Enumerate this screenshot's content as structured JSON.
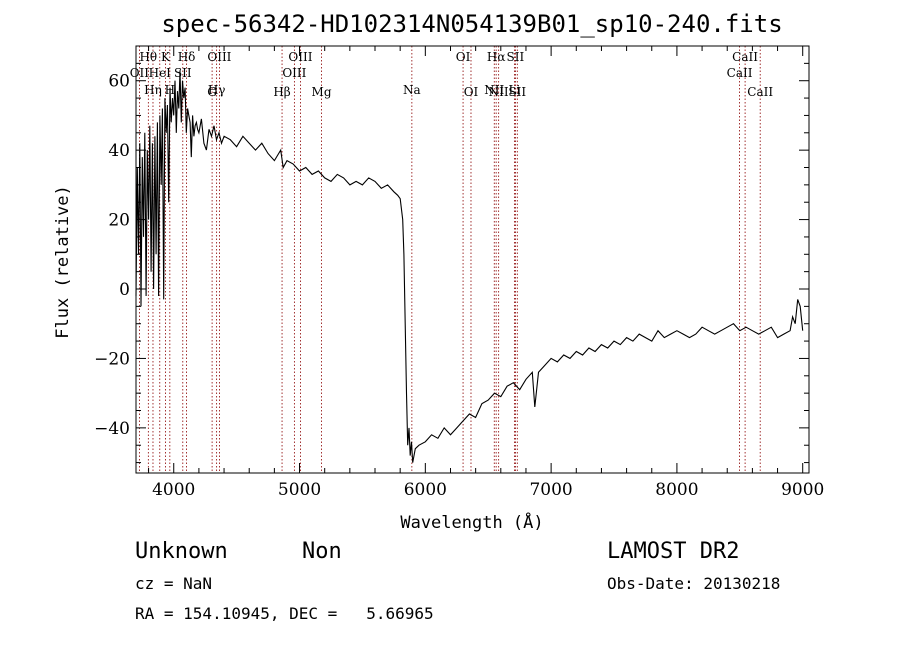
{
  "footer": {
    "class_label": "Unknown",
    "subclass_label": "Non",
    "survey": "LAMOST DR2",
    "cz": "cz = NaN",
    "obs_date": "Obs-Date: 20130218",
    "coords": "RA = 154.10945, DEC =   5.66965"
  },
  "chart_data": {
    "type": "line",
    "title": "spec-56342-HD102314N054139B01_sp10-240.fits",
    "xlabel": "Wavelength (Å)",
    "ylabel": "Flux (relative)",
    "xlim": [
      3700,
      9050
    ],
    "ylim": [
      -53,
      70
    ],
    "x_ticks": [
      4000,
      5000,
      6000,
      7000,
      8000,
      9000
    ],
    "y_ticks": [
      -40,
      -20,
      0,
      20,
      40,
      60
    ],
    "line_color": "#000000",
    "marker_color": "#8b0000",
    "spectral_lines": [
      {
        "label": "OII",
        "wavelength": 3727,
        "row": 2
      },
      {
        "label": "Hθ",
        "wavelength": 3798,
        "row": 1
      },
      {
        "label": "Hη",
        "wavelength": 3835,
        "row": 3
      },
      {
        "label": "HeI",
        "wavelength": 3889,
        "row": 2
      },
      {
        "label": "K",
        "wavelength": 3934,
        "row": 1
      },
      {
        "label": "H",
        "wavelength": 3969,
        "row": 3
      },
      {
        "label": "SII",
        "wavelength": 4072,
        "row": 2
      },
      {
        "label": "Hδ",
        "wavelength": 4102,
        "row": 1
      },
      {
        "label": "G",
        "wavelength": 4305,
        "row": 4
      },
      {
        "label": "Hγ",
        "wavelength": 4341,
        "row": 3
      },
      {
        "label": "OIII",
        "wavelength": 4363,
        "row": 1
      },
      {
        "label": "Hβ",
        "wavelength": 4861,
        "row": 4
      },
      {
        "label": "OIII",
        "wavelength": 4959,
        "row": 2
      },
      {
        "label": "OIII",
        "wavelength": 5007,
        "row": 1
      },
      {
        "label": "Mg",
        "wavelength": 5175,
        "row": 4
      },
      {
        "label": "Na",
        "wavelength": 5893,
        "row": 3
      },
      {
        "label": "OI",
        "wavelength": 6300,
        "row": 1
      },
      {
        "label": "OI",
        "wavelength": 6363,
        "row": 4
      },
      {
        "label": "NII",
        "wavelength": 6548,
        "row": 3
      },
      {
        "label": "Hα",
        "wavelength": 6563,
        "row": 1
      },
      {
        "label": "NII",
        "wavelength": 6583,
        "row": 4
      },
      {
        "label": "Li",
        "wavelength": 6708,
        "row": 3
      },
      {
        "label": "SII",
        "wavelength": 6716,
        "row": 1
      },
      {
        "label": "SII",
        "wavelength": 6731,
        "row": 4
      },
      {
        "label": "CaII",
        "wavelength": 8498,
        "row": 2
      },
      {
        "label": "CaII",
        "wavelength": 8542,
        "row": 1
      },
      {
        "label": "CaII",
        "wavelength": 8662,
        "row": 4
      }
    ],
    "series": [
      {
        "x": [
          3700,
          3710,
          3720,
          3730,
          3740,
          3750,
          3760,
          3770,
          3780,
          3790,
          3800,
          3810,
          3820,
          3830,
          3840,
          3850,
          3860,
          3870,
          3880,
          3890,
          3900,
          3910,
          3920,
          3930,
          3940,
          3950,
          3960,
          3970,
          3980,
          3990,
          4000,
          4010,
          4020,
          4030,
          4040,
          4050,
          4060,
          4070,
          4080,
          4090,
          4100,
          4110,
          4120,
          4130,
          4140,
          4150,
          4160,
          4170,
          4180,
          4190,
          4200,
          4220,
          4240,
          4260,
          4280,
          4300,
          4320,
          4340,
          4360,
          4380,
          4400,
          4450,
          4500,
          4550,
          4600,
          4650,
          4700,
          4750,
          4800,
          4850,
          4870,
          4900,
          4950,
          5000,
          5050,
          5100,
          5150,
          5200,
          5250,
          5300,
          5350,
          5400,
          5450,
          5500,
          5550,
          5600,
          5650,
          5700,
          5750,
          5780,
          5800,
          5820,
          5830,
          5840,
          5850,
          5860,
          5870,
          5880,
          5890,
          5900,
          5920,
          5950,
          6000,
          6050,
          6100,
          6150,
          6200,
          6250,
          6300,
          6350,
          6400,
          6450,
          6500,
          6550,
          6600,
          6650,
          6700,
          6750,
          6800,
          6850,
          6870,
          6900,
          6950,
          7000,
          7050,
          7100,
          7150,
          7200,
          7250,
          7300,
          7350,
          7400,
          7450,
          7500,
          7550,
          7600,
          7650,
          7700,
          7750,
          7800,
          7850,
          7900,
          7950,
          8000,
          8050,
          8100,
          8150,
          8200,
          8250,
          8300,
          8350,
          8400,
          8450,
          8500,
          8550,
          8600,
          8650,
          8700,
          8750,
          8800,
          8850,
          8900,
          8920,
          8940,
          8960,
          8980,
          9000
        ],
        "y": [
          -2,
          35,
          10,
          42,
          -5,
          38,
          15,
          45,
          -2,
          40,
          20,
          47,
          5,
          42,
          0,
          44,
          10,
          48,
          -2,
          50,
          30,
          52,
          -3,
          55,
          45,
          53,
          25,
          58,
          48,
          55,
          50,
          60,
          45,
          57,
          52,
          63,
          48,
          60,
          55,
          58,
          45,
          52,
          50,
          48,
          38,
          50,
          44,
          47,
          48,
          46,
          45,
          49,
          42,
          40,
          46,
          44,
          47,
          43,
          45,
          42,
          44,
          43,
          41,
          44,
          42,
          40,
          42,
          39,
          37,
          40,
          35,
          37,
          36,
          34,
          35,
          33,
          34,
          32,
          31,
          33,
          32,
          30,
          31,
          30,
          32,
          31,
          29,
          30,
          28,
          27,
          26,
          20,
          10,
          -10,
          -30,
          -45,
          -40,
          -48,
          -44,
          -50,
          -46,
          -45,
          -44,
          -42,
          -43,
          -40,
          -42,
          -40,
          -38,
          -36,
          -37,
          -33,
          -32,
          -30,
          -31,
          -28,
          -27,
          -29,
          -26,
          -24,
          -34,
          -24,
          -22,
          -20,
          -21,
          -19,
          -20,
          -18,
          -19,
          -17,
          -18,
          -16,
          -17,
          -15,
          -16,
          -14,
          -15,
          -13,
          -14,
          -15,
          -12,
          -14,
          -13,
          -12,
          -13,
          -14,
          -13,
          -11,
          -12,
          -13,
          -12,
          -11,
          -10,
          -12,
          -11,
          -12,
          -13,
          -12,
          -11,
          -14,
          -13,
          -12,
          -8,
          -10,
          -3,
          -5,
          -12
        ]
      }
    ]
  }
}
